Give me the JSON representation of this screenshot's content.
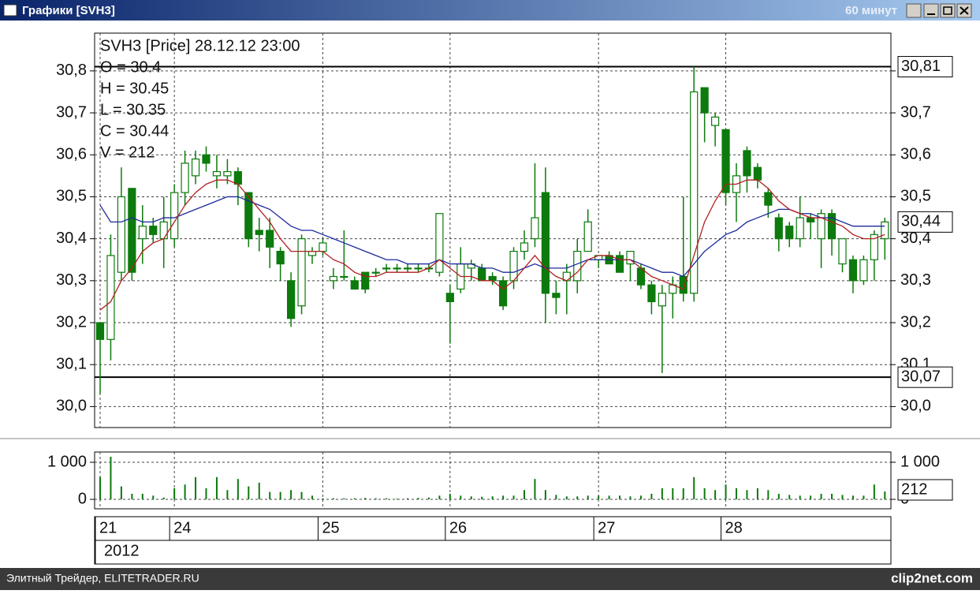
{
  "window": {
    "title": "Графики [SVH3]",
    "interval": "60 минут"
  },
  "footer": {
    "left": "Элитный Трейдер, ELITETRADER.RU",
    "right": "clip2net.com"
  },
  "chart_data": [
    {
      "type": "candlestick",
      "title": "SVH3 [Price] 28.12.12 23:00",
      "info": [
        "O = 30.4",
        "H = 30.45",
        "L = 30.35",
        "C = 30.44",
        "V = 212"
      ],
      "xlabel": "2012",
      "categories": [
        "21",
        null,
        null,
        null,
        null,
        null,
        null,
        "24",
        null,
        null,
        null,
        null,
        null,
        null,
        null,
        null,
        null,
        null,
        null,
        null,
        null,
        "25",
        null,
        null,
        null,
        null,
        null,
        null,
        null,
        null,
        null,
        null,
        null,
        "26",
        null,
        null,
        null,
        null,
        null,
        null,
        null,
        null,
        null,
        null,
        null,
        null,
        null,
        "27",
        null,
        null,
        null,
        null,
        null,
        null,
        null,
        null,
        null,
        null,
        null,
        "28",
        null,
        null,
        null,
        null,
        null,
        null,
        null,
        null,
        null,
        null,
        null,
        null,
        null,
        null,
        null
      ],
      "open": [
        30.2,
        30.16,
        30.32,
        30.52,
        30.4,
        30.43,
        30.4,
        30.4,
        30.51,
        30.55,
        30.6,
        30.55,
        30.55,
        30.56,
        30.51,
        30.42,
        30.42,
        30.37,
        30.3,
        30.24,
        30.36,
        30.37,
        30.3,
        30.31,
        30.3,
        30.32,
        30.32,
        30.33,
        30.33,
        30.33,
        30.33,
        30.33,
        30.32,
        30.27,
        30.28,
        30.33,
        30.33,
        30.31,
        30.3,
        30.3,
        30.37,
        30.4,
        30.51,
        30.27,
        30.3,
        30.3,
        30.37,
        30.35,
        30.36,
        30.36,
        30.34,
        30.33,
        30.29,
        30.24,
        30.27,
        30.31,
        30.27,
        30.76,
        30.67,
        30.66,
        30.51,
        30.61,
        30.57,
        30.51,
        30.45,
        30.43,
        30.4,
        30.45,
        30.4,
        30.46,
        30.34,
        30.35,
        30.3,
        30.35,
        30.4
      ],
      "high": [
        30.2,
        30.41,
        30.57,
        30.52,
        30.48,
        30.45,
        30.5,
        30.53,
        30.61,
        30.61,
        30.62,
        30.6,
        30.59,
        30.57,
        30.51,
        30.45,
        30.45,
        30.38,
        30.32,
        30.41,
        30.38,
        30.4,
        30.33,
        30.42,
        30.31,
        30.32,
        30.33,
        30.34,
        30.34,
        30.34,
        30.34,
        30.34,
        30.46,
        30.29,
        30.38,
        30.35,
        30.34,
        30.32,
        30.31,
        30.38,
        30.42,
        30.58,
        30.57,
        30.3,
        30.34,
        30.4,
        30.47,
        30.36,
        30.37,
        30.37,
        30.37,
        30.34,
        30.3,
        30.29,
        30.31,
        30.5,
        30.81,
        30.76,
        30.7,
        30.66,
        30.58,
        30.62,
        30.58,
        30.52,
        30.46,
        30.44,
        30.5,
        30.46,
        30.47,
        30.47,
        30.4,
        30.36,
        30.36,
        30.42,
        30.45
      ],
      "low": [
        30.03,
        30.11,
        30.3,
        30.3,
        30.34,
        30.39,
        30.33,
        30.38,
        30.48,
        30.53,
        30.56,
        30.52,
        30.53,
        30.48,
        30.38,
        30.37,
        30.33,
        30.3,
        30.19,
        30.22,
        30.34,
        30.36,
        30.28,
        30.3,
        30.28,
        30.27,
        30.31,
        30.32,
        30.32,
        30.32,
        30.32,
        30.32,
        30.31,
        30.15,
        30.27,
        30.3,
        30.3,
        30.29,
        30.23,
        30.28,
        30.35,
        30.38,
        30.2,
        30.22,
        30.22,
        30.27,
        30.37,
        30.33,
        30.34,
        30.32,
        30.3,
        30.28,
        30.22,
        30.08,
        30.21,
        30.25,
        30.25,
        30.63,
        30.62,
        30.48,
        30.44,
        30.51,
        30.52,
        30.45,
        30.37,
        30.38,
        30.38,
        30.4,
        30.33,
        30.36,
        30.32,
        30.27,
        30.29,
        30.3,
        30.35
      ],
      "close": [
        30.16,
        30.36,
        30.5,
        30.32,
        30.43,
        30.41,
        30.44,
        30.51,
        30.58,
        30.59,
        30.58,
        30.56,
        30.56,
        30.53,
        30.4,
        30.41,
        30.38,
        30.34,
        30.21,
        30.4,
        30.37,
        30.39,
        30.31,
        30.31,
        30.28,
        30.28,
        30.32,
        30.33,
        30.33,
        30.33,
        30.33,
        30.33,
        30.46,
        30.25,
        30.34,
        30.34,
        30.3,
        30.3,
        30.24,
        30.37,
        30.39,
        30.45,
        30.27,
        30.26,
        30.32,
        30.37,
        30.44,
        30.36,
        30.34,
        30.32,
        30.37,
        30.29,
        30.25,
        30.27,
        30.29,
        30.27,
        30.75,
        30.7,
        30.69,
        30.51,
        30.55,
        30.55,
        30.54,
        30.48,
        30.4,
        30.4,
        30.45,
        30.44,
        30.46,
        30.4,
        30.4,
        30.3,
        30.35,
        30.41,
        30.44
      ],
      "up_color": "#ffffff",
      "down_color": "#0c7a0c",
      "edge_color": "#0c7a0c",
      "series": [
        {
          "color": "#1c2a9c",
          "values": [
            30.48,
            30.44,
            30.44,
            30.45,
            30.44,
            30.44,
            30.45,
            30.45,
            30.46,
            30.47,
            30.48,
            30.49,
            30.5,
            30.5,
            30.49,
            30.48,
            30.47,
            30.45,
            30.43,
            30.42,
            30.42,
            30.41,
            30.4,
            30.39,
            30.38,
            30.37,
            30.36,
            30.35,
            30.35,
            30.34,
            30.34,
            30.34,
            30.35,
            30.34,
            30.34,
            30.34,
            30.33,
            30.33,
            30.32,
            30.32,
            30.33,
            30.34,
            30.33,
            30.33,
            30.33,
            30.34,
            30.35,
            30.35,
            30.35,
            30.35,
            30.35,
            30.34,
            30.33,
            30.32,
            30.32,
            30.31,
            30.34,
            30.37,
            30.39,
            30.41,
            30.42,
            30.44,
            30.45,
            30.46,
            30.47,
            30.47,
            30.46,
            30.46,
            30.45,
            30.45,
            30.44,
            30.43,
            30.43,
            30.43,
            30.43
          ]
        },
        {
          "color": "#b02020",
          "values": [
            30.23,
            30.25,
            30.3,
            30.33,
            30.37,
            30.39,
            30.4,
            30.44,
            30.48,
            30.51,
            30.53,
            30.54,
            30.54,
            30.53,
            30.5,
            30.47,
            30.44,
            30.4,
            30.37,
            30.37,
            30.37,
            30.37,
            30.35,
            30.34,
            30.32,
            30.31,
            30.31,
            30.32,
            30.32,
            30.32,
            30.32,
            30.33,
            30.35,
            30.33,
            30.31,
            30.31,
            30.3,
            30.3,
            30.28,
            30.3,
            30.33,
            30.36,
            30.33,
            30.31,
            30.3,
            30.32,
            30.35,
            30.36,
            30.36,
            30.35,
            30.35,
            30.33,
            30.31,
            30.3,
            30.29,
            30.28,
            30.36,
            30.44,
            30.49,
            30.53,
            30.53,
            30.54,
            30.54,
            30.52,
            30.49,
            30.47,
            30.46,
            30.45,
            30.45,
            30.44,
            30.43,
            30.41,
            30.4,
            30.4,
            30.41
          ]
        }
      ],
      "ylim": [
        29.95,
        30.89
      ],
      "yticks": [
        {
          "value": 30.0,
          "label": "30,0"
        },
        {
          "value": 30.1,
          "label": "30,1"
        },
        {
          "value": 30.2,
          "label": "30,2"
        },
        {
          "value": 30.3,
          "label": "30,3"
        },
        {
          "value": 30.4,
          "label": "30,4"
        },
        {
          "value": 30.5,
          "label": "30,5"
        },
        {
          "value": 30.6,
          "label": "30,6"
        },
        {
          "value": 30.7,
          "label": "30,7"
        },
        {
          "value": 30.8,
          "label": "30,8"
        }
      ],
      "grid": true,
      "hlines": [
        {
          "value": 30.81,
          "label": "30,81"
        },
        {
          "value": 30.07,
          "label": "30,07"
        }
      ],
      "last_label": {
        "value": 30.44,
        "label": "30,44"
      }
    },
    {
      "type": "bar",
      "color": "#0c7a0c",
      "values": [
        600,
        1150,
        350,
        150,
        150,
        100,
        50,
        300,
        400,
        600,
        300,
        600,
        250,
        550,
        350,
        450,
        200,
        200,
        250,
        200,
        100,
        25,
        30,
        30,
        30,
        40,
        30,
        30,
        20,
        30,
        40,
        50,
        100,
        150,
        100,
        80,
        70,
        80,
        100,
        100,
        250,
        550,
        250,
        120,
        80,
        80,
        100,
        100,
        100,
        100,
        80,
        100,
        150,
        300,
        300,
        300,
        600,
        300,
        250,
        400,
        300,
        250,
        300,
        250,
        150,
        120,
        100,
        100,
        150,
        150,
        120,
        100,
        100,
        400,
        212
      ],
      "ylim": [
        -255,
        1277
      ],
      "yticks": [
        0,
        {
          "value": 1000,
          "label": "1 000"
        }
      ],
      "grid": true
    }
  ]
}
